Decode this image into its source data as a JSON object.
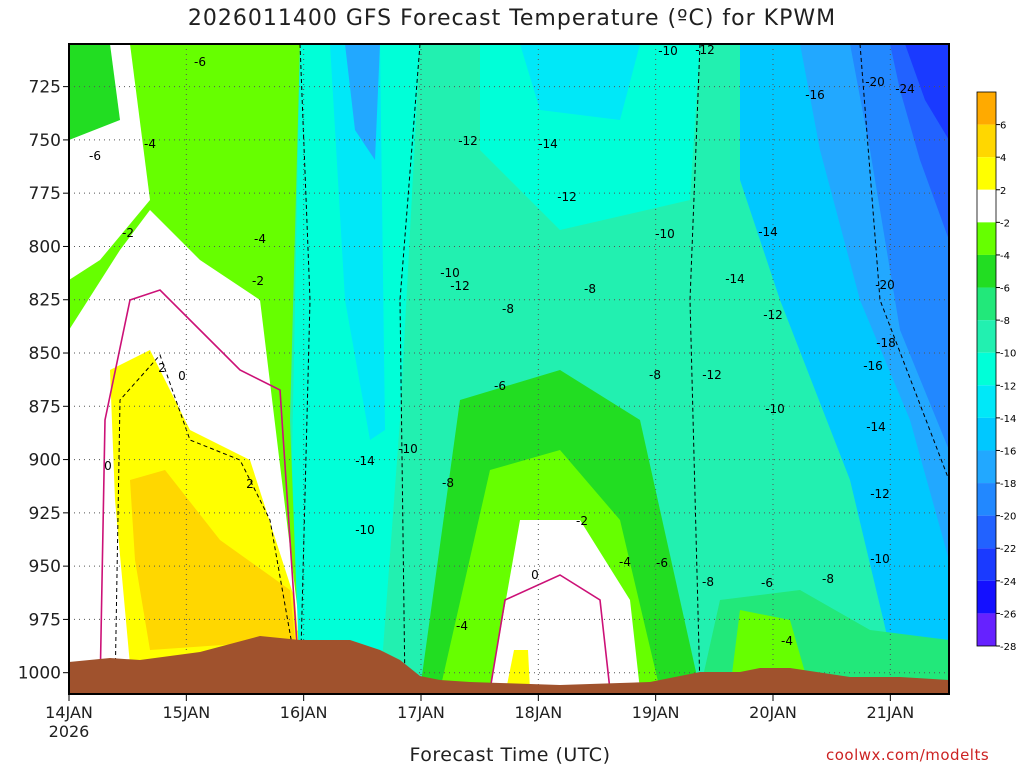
{
  "chart_data": {
    "type": "heatmap",
    "title": "2026011400 GFS Forecast Temperature (ºC) for KPWM",
    "xlabel": "Forecast Time (UTC)",
    "ylabel": "",
    "credit": "coolwx.com/modelts",
    "x_ticks": [
      "14JAN",
      "15JAN",
      "16JAN",
      "17JAN",
      "18JAN",
      "19JAN",
      "20JAN",
      "21JAN"
    ],
    "x_first_year": "2026",
    "x_range_days": [
      0,
      7.5
    ],
    "y_ticks": [
      725,
      750,
      775,
      800,
      825,
      850,
      875,
      900,
      925,
      950,
      975,
      1000
    ],
    "y_range_hpa": [
      1010,
      705
    ],
    "grid": true,
    "colorbar": {
      "labels": [
        "6",
        "4",
        "2",
        "-2",
        "-4",
        "-6",
        "-8",
        "-10",
        "-12",
        "-14",
        "-16",
        "-18",
        "-20",
        "-22",
        "-24",
        "-26",
        "-28"
      ],
      "colors": [
        "#FFAA00",
        "#FFD700",
        "#FFFF00",
        "#FFFFFF",
        "#66FF00",
        "#22DD22",
        "#22E87A",
        "#22F0B0",
        "#00FFD8",
        "#00E8F8",
        "#00C8FF",
        "#22A8FF",
        "#2288FF",
        "#2262FF",
        "#1A3AFF",
        "#1410FF",
        "#6622FF"
      ]
    },
    "terrain_color": "#A0522D",
    "contour_labels": [
      "-6",
      "-6",
      "-4",
      "-2",
      "-4",
      "-2",
      "2",
      "0",
      "0",
      "2",
      "-12",
      "-14",
      "-12",
      "-10",
      "-10",
      "-12",
      "-16",
      "-20",
      "-24",
      "-14",
      "-14",
      "-12",
      "-20",
      "-18",
      "-16",
      "-14",
      "-12",
      "-10",
      "-10",
      "-8",
      "-8",
      "-6",
      "-8",
      "-12",
      "-10",
      "-14",
      "-10",
      "-8",
      "-12",
      "-2",
      "0",
      "-4",
      "-6",
      "-8",
      "-6",
      "-8",
      "-10",
      "-4",
      "-4"
    ]
  }
}
